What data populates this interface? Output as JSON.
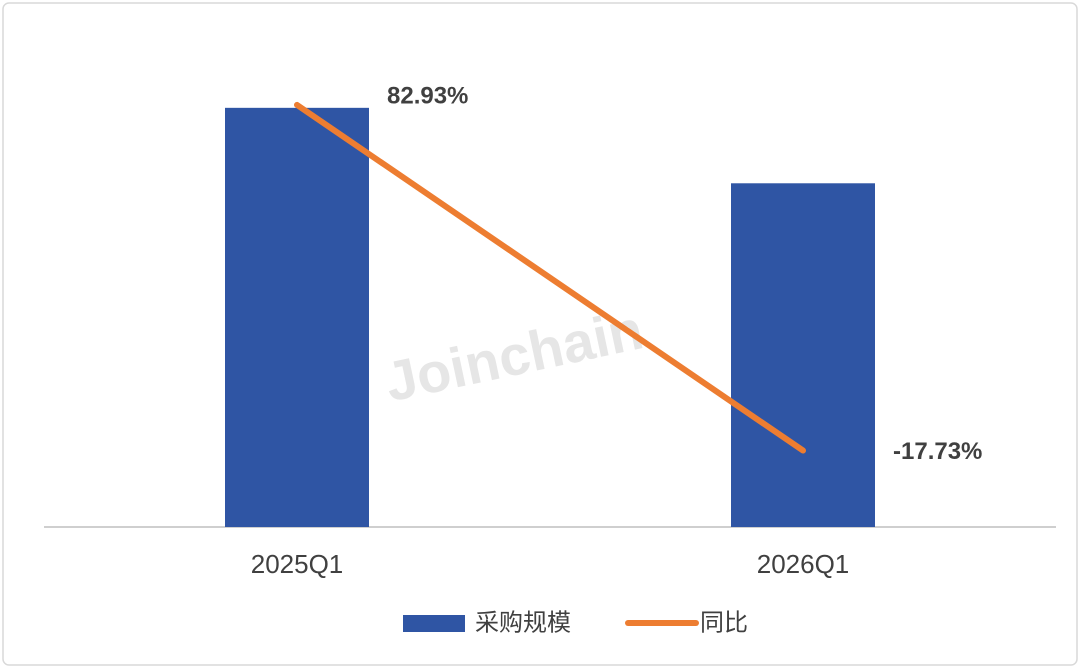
{
  "chart_data": {
    "type": "bar",
    "watermark": "Joinchain",
    "categories": [
      "2025Q1",
      "2026Q1"
    ],
    "series": [
      {
        "name": "采购规模",
        "type": "bar",
        "color": "#2f55a4",
        "values": [
          100,
          82
        ]
      },
      {
        "name": "同比",
        "type": "line",
        "axis": "y2",
        "color": "#ed7d31",
        "values": [
          82.93,
          -17.73
        ],
        "value_labels": [
          "82.93%",
          "-17.73%"
        ]
      }
    ],
    "ylim": [
      0,
      120
    ],
    "y2lim": [
      -40,
      106.5
    ],
    "legend": "bottom"
  }
}
